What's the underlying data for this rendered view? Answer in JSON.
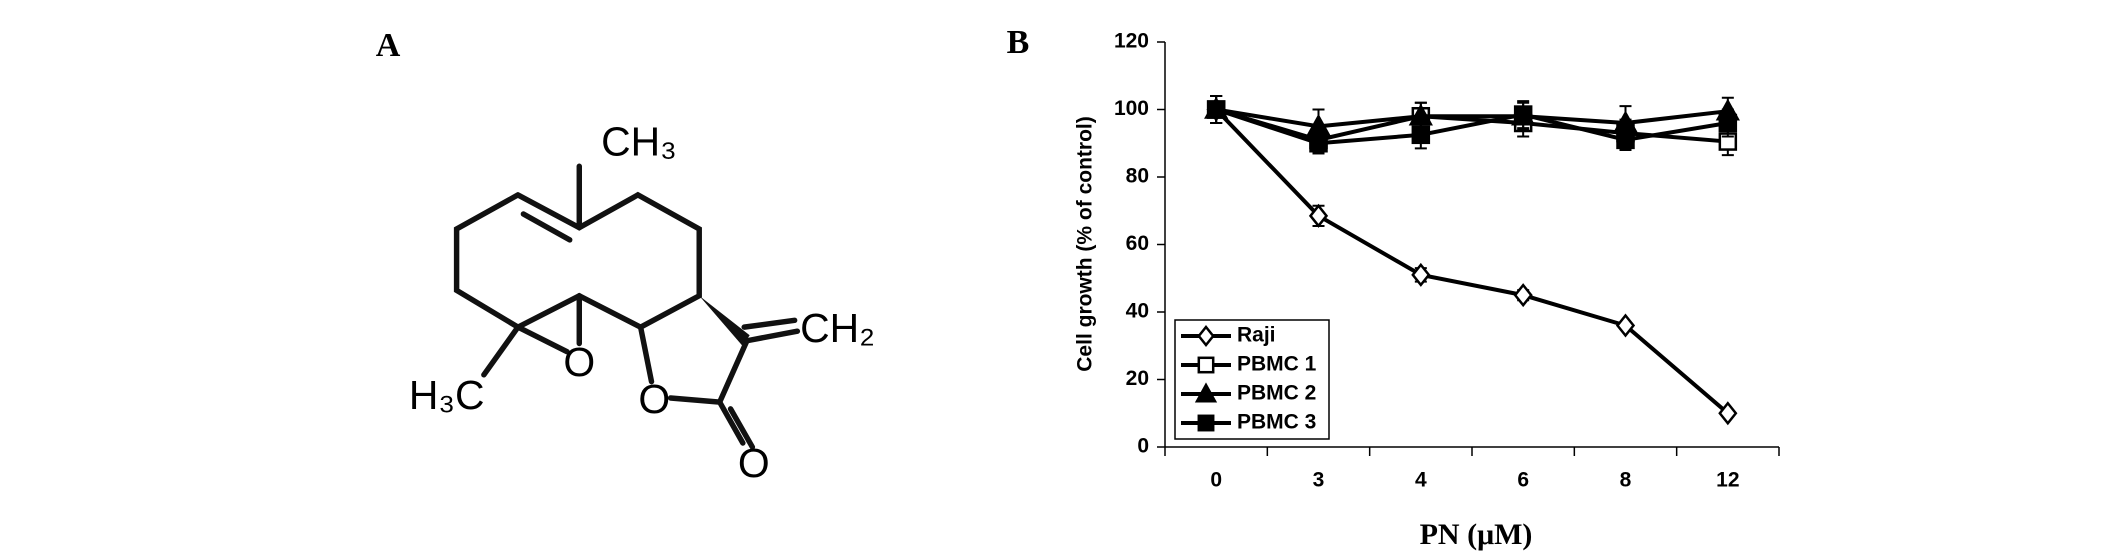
{
  "panels": [
    "A",
    "B"
  ],
  "structure": {
    "labels": [
      "CH₃",
      "H₃C",
      "O",
      "O",
      "O",
      "CH₂"
    ]
  },
  "chart_data": {
    "type": "line",
    "y_label": "Cell growth (% of control)",
    "x_label": "PN (μM)",
    "categories": [
      "0",
      "3",
      "4",
      "6",
      "8",
      "12"
    ],
    "ylim": [
      0,
      120
    ],
    "yticks": [
      0,
      20,
      40,
      60,
      80,
      100,
      120
    ],
    "grid": false,
    "legend": "lower left",
    "series": [
      {
        "name": "Raji",
        "color": "#000000",
        "marker": "diamond",
        "marker_fill": "#ffffff",
        "values": [
          100,
          68.5,
          51,
          45,
          36,
          10
        ],
        "errors": [
          2,
          3,
          2,
          1.5,
          1,
          0.5
        ]
      },
      {
        "name": "PBMC 1",
        "color": "#000000",
        "marker": "square",
        "marker_fill": "#ffffff",
        "values": [
          100,
          91,
          98,
          96,
          93,
          90.5
        ],
        "errors": [
          4,
          4,
          4,
          4,
          4,
          4
        ]
      },
      {
        "name": "PBMC 2",
        "color": "#000000",
        "marker": "triangle",
        "marker_fill": "#000000",
        "values": [
          100,
          95,
          98,
          98,
          96,
          99.5
        ],
        "errors": [
          4,
          5,
          4,
          4,
          5,
          4
        ]
      },
      {
        "name": "PBMC 3",
        "color": "#000000",
        "marker": "square",
        "marker_fill": "#000000",
        "values": [
          100,
          90,
          92.5,
          98.5,
          91,
          96
        ],
        "errors": [
          4,
          3,
          4,
          4,
          3,
          4
        ]
      }
    ]
  }
}
